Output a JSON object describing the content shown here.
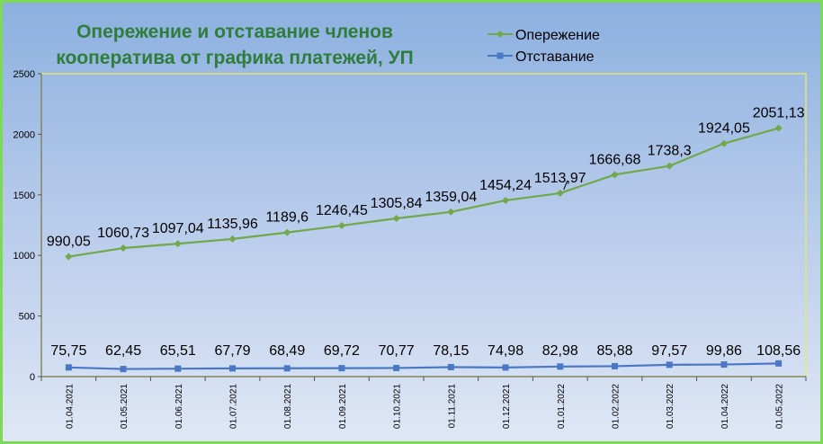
{
  "chart_data": {
    "type": "line",
    "title": "Опережение и отставание членов кооператива от графика платежей, УП",
    "categories": [
      "01.04.2021",
      "01.05.2021",
      "01.06.2021",
      "01.07.2021",
      "01.08.2021",
      "01.09.2021",
      "01.10.2021",
      "01.11.2021",
      "01.12.2021",
      "01.01.2022",
      "01.02.2022",
      "01.03.2022",
      "01.04.2022",
      "01.05.2022"
    ],
    "series": [
      {
        "name": "Опережение",
        "color": "#70a84a",
        "marker": "diamond",
        "values": [
          990.05,
          1060.73,
          1097.04,
          1135.96,
          1189.6,
          1246.45,
          1305.84,
          1359.04,
          1454.24,
          1513.97,
          1666.68,
          1738.3,
          1924.05,
          2051.13
        ],
        "labels": [
          "990,05",
          "1060,73",
          "1097,04",
          "1135,96",
          "1189,6",
          "1246,45",
          "1305,84",
          "1359,04",
          "1454,24",
          "1513,97",
          "1666,68",
          "1738,3",
          "1924,05",
          "2051,13"
        ]
      },
      {
        "name": "Отставание",
        "color": "#4a78c4",
        "marker": "square",
        "values": [
          75.75,
          62.45,
          65.51,
          67.79,
          68.49,
          69.72,
          70.77,
          78.15,
          74.98,
          82.98,
          85.88,
          97.57,
          99.86,
          108.56
        ],
        "labels": [
          "75,75",
          "62,45",
          "65,51",
          "67,79",
          "68,49",
          "69,72",
          "70,77",
          "78,15",
          "74,98",
          "82,98",
          "85,88",
          "97,57",
          "99,86",
          "108,56"
        ]
      }
    ],
    "ylim": [
      0,
      2500
    ],
    "yticks": [
      0,
      500,
      1000,
      1500,
      2000,
      2500
    ],
    "legend": "top-right",
    "grid": false
  }
}
